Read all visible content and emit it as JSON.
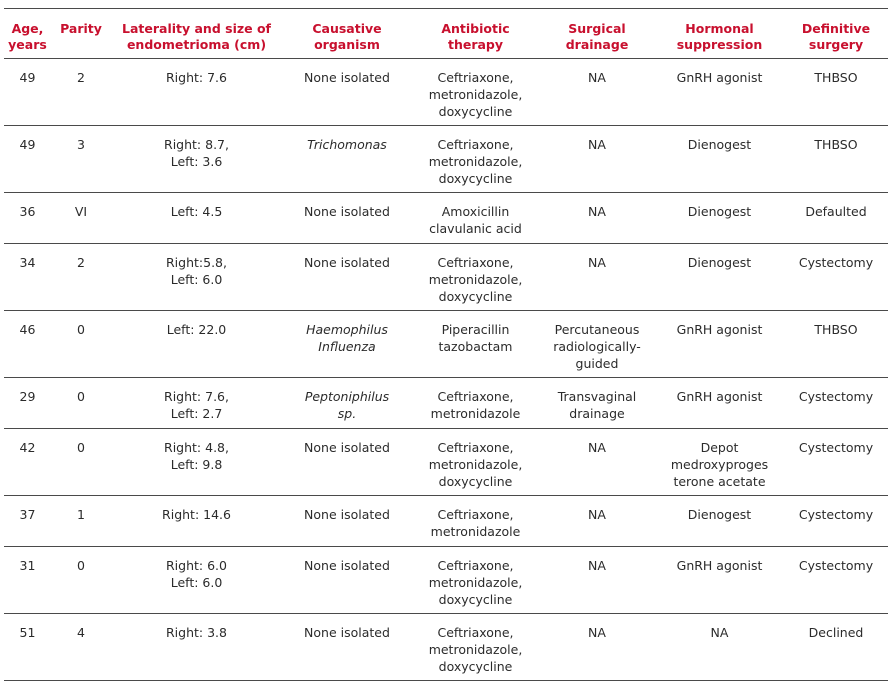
{
  "table": {
    "headers": [
      "Age,\nyears",
      "Parity",
      "Laterality and size of endometrioma (cm)",
      "Causative organism",
      "Antibiotic therapy",
      "Surgical drainage",
      "Hormonal suppression",
      "Definitive surgery"
    ],
    "rows": [
      [
        "49",
        "2",
        "Right: 7.6",
        "None isolated",
        "Ceftriaxone,\nmetronidazole,\ndoxycycline",
        "NA",
        "GnRH agonist",
        "THBSO"
      ],
      [
        "49",
        "3",
        "Right: 8.7,\nLeft: 3.6",
        "Trichomonas",
        "Ceftriaxone,\nmetronidazole,\ndoxycycline",
        "NA",
        "Dienogest",
        "THBSO"
      ],
      [
        "36",
        "VI",
        "Left: 4.5",
        "None isolated",
        "Amoxicillin\nclavulanic acid",
        "NA",
        "Dienogest",
        "Defaulted"
      ],
      [
        "34",
        "2",
        "Right:5.8,\nLeft: 6.0",
        "None isolated",
        "Ceftriaxone,\nmetronidazole,\ndoxycycline",
        "NA",
        "Dienogest",
        "Cystectomy"
      ],
      [
        "46",
        "0",
        "Left: 22.0",
        "Haemophilus\nInfluenza",
        "Piperacillin\ntazobactam",
        "Percutaneous\nradiologically-\nguided",
        "GnRH agonist",
        "THBSO"
      ],
      [
        "29",
        "0",
        "Right: 7.6,\nLeft: 2.7",
        "Peptoniphilus\nsp.",
        "Ceftriaxone,\nmetronidazole",
        "Transvaginal\ndrainage",
        "GnRH agonist",
        "Cystectomy"
      ],
      [
        "42",
        "0",
        "Right: 4.8,\nLeft: 9.8",
        "None isolated",
        "Ceftriaxone,\nmetronidazole,\ndoxycycline",
        "NA",
        "Depot\nmedroxyproges\nterone acetate",
        "Cystectomy"
      ],
      [
        "37",
        "1",
        "Right: 14.6",
        "None isolated",
        "Ceftriaxone,\nmetronidazole",
        "NA",
        "Dienogest",
        "Cystectomy"
      ],
      [
        "31",
        "0",
        "Right: 6.0\nLeft: 6.0",
        "None isolated",
        "Ceftriaxone,\nmetronidazole,\ndoxycycline",
        "NA",
        "GnRH agonist",
        "Cystectomy"
      ],
      [
        "51",
        "4",
        "Right: 3.8",
        "None isolated",
        "Ceftriaxone,\nmetronidazole,\ndoxycycline",
        "NA",
        "NA",
        "Declined"
      ]
    ]
  }
}
